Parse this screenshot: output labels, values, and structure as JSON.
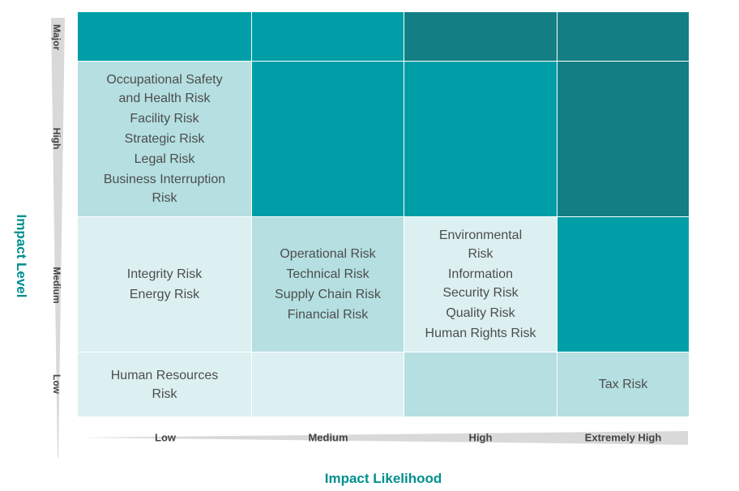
{
  "chart_data": {
    "type": "heatmap",
    "xlabel": "Impact Likelihood",
    "ylabel": "Impact Level",
    "x_categories": [
      "Low",
      "Medium",
      "High",
      "Extremely High"
    ],
    "y_categories": [
      "Major",
      "High",
      "Medium",
      "Low"
    ],
    "colors": {
      "lightest": "#dcf0f1",
      "light": "#b5dfe1",
      "medium": "#009ea7",
      "dark": "#137f84",
      "axis_title": "#008f8f",
      "wedge": "#d9d9d9"
    },
    "cells": [
      {
        "level": "Major",
        "likelihood": "Low",
        "shade": "medium",
        "risks": []
      },
      {
        "level": "Major",
        "likelihood": "Medium",
        "shade": "medium",
        "risks": []
      },
      {
        "level": "Major",
        "likelihood": "High",
        "shade": "dark",
        "risks": []
      },
      {
        "level": "Major",
        "likelihood": "Extremely High",
        "shade": "dark",
        "risks": []
      },
      {
        "level": "High",
        "likelihood": "Low",
        "shade": "light",
        "risks": [
          "Occupational Safety\n  and Health Risk",
          "Facility Risk",
          "Strategic Risk",
          "Legal Risk",
          "Business Interruption\nRisk"
        ]
      },
      {
        "level": "High",
        "likelihood": "Medium",
        "shade": "medium",
        "risks": []
      },
      {
        "level": "High",
        "likelihood": "High",
        "shade": "medium",
        "risks": []
      },
      {
        "level": "High",
        "likelihood": "Extremely High",
        "shade": "dark",
        "risks": []
      },
      {
        "level": "Medium",
        "likelihood": "Low",
        "shade": "lightest",
        "risks": [
          "Integrity Risk",
          "Energy Risk"
        ]
      },
      {
        "level": "Medium",
        "likelihood": "Medium",
        "shade": "light",
        "risks": [
          "Operational Risk",
          "Technical Risk",
          "Supply Chain Risk",
          "Financial Risk"
        ]
      },
      {
        "level": "Medium",
        "likelihood": "High",
        "shade": "lightest",
        "risks": [
          "Environmental\nRisk",
          "Information\nSecurity Risk",
          "Quality Risk",
          "Human Rights Risk"
        ]
      },
      {
        "level": "Medium",
        "likelihood": "Extremely High",
        "shade": "medium",
        "risks": []
      },
      {
        "level": "Low",
        "likelihood": "Low",
        "shade": "lightest",
        "risks": [
          "Human Resources\nRisk"
        ]
      },
      {
        "level": "Low",
        "likelihood": "Medium",
        "shade": "lightest",
        "risks": []
      },
      {
        "level": "Low",
        "likelihood": "High",
        "shade": "light",
        "risks": []
      },
      {
        "level": "Low",
        "likelihood": "Extremely High",
        "shade": "light",
        "risks": [
          "Tax Risk"
        ]
      }
    ]
  }
}
